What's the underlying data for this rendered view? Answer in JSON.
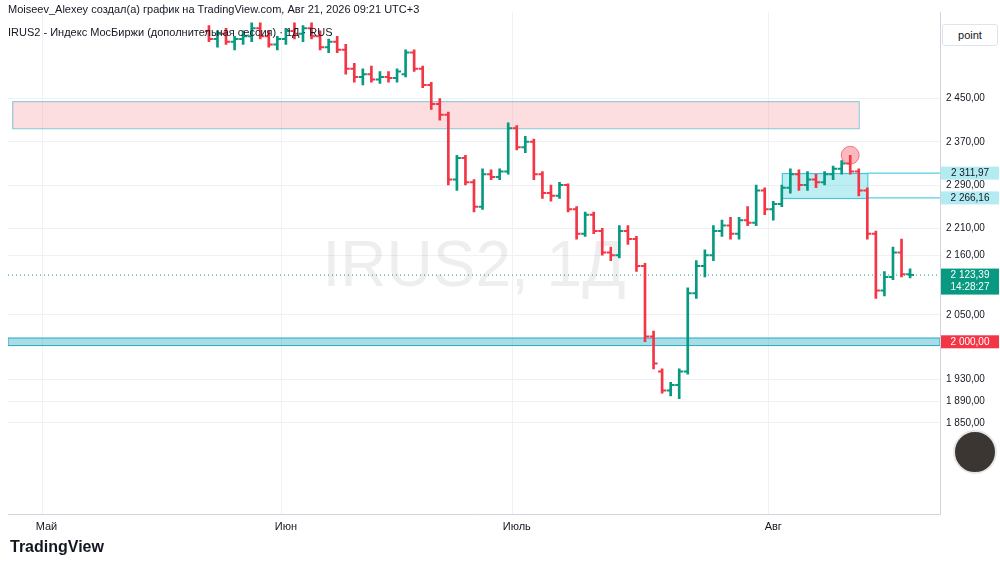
{
  "chart_data": {
    "type": "ohlc",
    "title": "Moiseev_Alexey создал(а) график на TradingView.com, Авг 21, 2026 09:21 UTC+3",
    "subtitle": "IRUS2 - Индекс МосБиржи (дополнительная сессия) · 1Д · RUS",
    "watermark": "IRUS2, 1Д",
    "button": "point",
    "logo": "TradingView",
    "categories": [
      null,
      null,
      null,
      null,
      "Май",
      null,
      null,
      null,
      null,
      null,
      null,
      null,
      null,
      null,
      null,
      null,
      null,
      null,
      null,
      null,
      null,
      null,
      null,
      null,
      null,
      null,
      null,
      null,
      null,
      null,
      null,
      null,
      "Июн",
      null,
      null,
      null,
      null,
      null,
      null,
      null,
      null,
      null,
      null,
      null,
      null,
      null,
      null,
      null,
      null,
      null,
      null,
      null,
      null,
      null,
      null,
      null,
      null,
      null,
      null,
      "Июль",
      null,
      null,
      null,
      null,
      null,
      null,
      null,
      null,
      null,
      null,
      null,
      null,
      null,
      null,
      null,
      null,
      null,
      null,
      null,
      null,
      null,
      null,
      null,
      null,
      null,
      null,
      null,
      null,
      null,
      "Авг",
      null,
      null,
      null,
      null,
      null,
      null,
      null,
      null,
      null,
      null,
      null,
      null,
      null,
      null,
      null,
      null,
      null,
      null,
      null
    ],
    "ohlc": [
      null,
      null,
      null,
      null,
      null,
      null,
      null,
      null,
      null,
      null,
      null,
      null,
      null,
      null,
      null,
      null,
      null,
      null,
      null,
      null,
      null,
      null,
      null,
      [
        2575,
        2585,
        2555,
        2560
      ],
      [
        2560,
        2575,
        2545,
        2570
      ],
      [
        2570,
        2580,
        2550,
        2555
      ],
      [
        2555,
        2565,
        2540,
        2560
      ],
      [
        2560,
        2575,
        2550,
        2565
      ],
      [
        2565,
        2590,
        2555,
        2580
      ],
      [
        2580,
        2590,
        2560,
        2565
      ],
      [
        2565,
        2575,
        2545,
        2550
      ],
      [
        2550,
        2565,
        2540,
        2560
      ],
      [
        2560,
        2580,
        2550,
        2575
      ],
      [
        2575,
        2590,
        2560,
        2570
      ],
      [
        2570,
        2585,
        2555,
        2580
      ],
      [
        2580,
        2590,
        2560,
        2565
      ],
      [
        2565,
        2575,
        2540,
        2545
      ],
      [
        2545,
        2560,
        2535,
        2555
      ],
      [
        2555,
        2565,
        2535,
        2540
      ],
      [
        2540,
        2550,
        2495,
        2505
      ],
      [
        2505,
        2515,
        2480,
        2490
      ],
      [
        2490,
        2505,
        2475,
        2495
      ],
      [
        2495,
        2510,
        2480,
        2485
      ],
      [
        2485,
        2500,
        2478,
        2490
      ],
      [
        2490,
        2500,
        2480,
        2488
      ],
      [
        2488,
        2505,
        2480,
        2500
      ],
      [
        2495,
        2540,
        2490,
        2535
      ],
      [
        2535,
        2540,
        2500,
        2505
      ],
      [
        2505,
        2510,
        2470,
        2475
      ],
      [
        2475,
        2480,
        2430,
        2440
      ],
      [
        2440,
        2450,
        2410,
        2420
      ],
      [
        2420,
        2425,
        2290,
        2300
      ],
      [
        2300,
        2345,
        2280,
        2340
      ],
      [
        2340,
        2345,
        2290,
        2295
      ],
      [
        2295,
        2300,
        2240,
        2250
      ],
      [
        2250,
        2320,
        2245,
        2310
      ],
      [
        2310,
        2318,
        2300,
        2305
      ],
      [
        2305,
        2320,
        2300,
        2315
      ],
      [
        2315,
        2405,
        2310,
        2395
      ],
      [
        2395,
        2400,
        2355,
        2360
      ],
      [
        2360,
        2380,
        2350,
        2370
      ],
      [
        2370,
        2375,
        2300,
        2310
      ],
      [
        2310,
        2315,
        2265,
        2275
      ],
      [
        2275,
        2290,
        2260,
        2270
      ],
      [
        2270,
        2295,
        2265,
        2290
      ],
      [
        2290,
        2292,
        2240,
        2245
      ],
      [
        2245,
        2250,
        2190,
        2200
      ],
      [
        2200,
        2240,
        2195,
        2235
      ],
      [
        2235,
        2240,
        2200,
        2205
      ],
      [
        2205,
        2210,
        2160,
        2165
      ],
      [
        2165,
        2175,
        2150,
        2160
      ],
      [
        2160,
        2215,
        2155,
        2205
      ],
      [
        2205,
        2215,
        2180,
        2190
      ],
      [
        2190,
        2195,
        2130,
        2140
      ],
      [
        2140,
        2145,
        2000,
        2010
      ],
      [
        2010,
        2020,
        1950,
        1960
      ],
      [
        1945,
        1950,
        1905,
        1910
      ],
      [
        1910,
        1925,
        1900,
        1920
      ],
      [
        1920,
        1950,
        1895,
        1945
      ],
      [
        1945,
        2100,
        1940,
        2090
      ],
      [
        2090,
        2150,
        2080,
        2140
      ],
      [
        2140,
        2170,
        2120,
        2160
      ],
      [
        2160,
        2215,
        2150,
        2205
      ],
      [
        2205,
        2225,
        2195,
        2215
      ],
      [
        2215,
        2230,
        2190,
        2200
      ],
      [
        2200,
        2230,
        2190,
        2225
      ],
      [
        2225,
        2250,
        2215,
        2220
      ],
      [
        2220,
        2290,
        2215,
        2280
      ],
      [
        2280,
        2285,
        2235,
        2245
      ],
      [
        2245,
        2260,
        2225,
        2255
      ],
      [
        2255,
        2290,
        2250,
        2285
      ],
      [
        2285,
        2320,
        2275,
        2310
      ],
      [
        2310,
        2318,
        2280,
        2290
      ],
      [
        2290,
        2315,
        2280,
        2300
      ],
      [
        2300,
        2310,
        2285,
        2295
      ],
      [
        2295,
        2315,
        2290,
        2310
      ],
      [
        2310,
        2325,
        2300,
        2320
      ],
      [
        2320,
        2335,
        2310,
        2330
      ],
      [
        2330,
        2345,
        2310,
        2315
      ],
      [
        2315,
        2320,
        2270,
        2280
      ],
      [
        2280,
        2285,
        2190,
        2200
      ],
      [
        2200,
        2205,
        2080,
        2095
      ],
      [
        2095,
        2130,
        2085,
        2120
      ],
      [
        2120,
        2175,
        2115,
        2165
      ],
      [
        2165,
        2190,
        2120,
        2125
      ],
      [
        2125,
        2135,
        2118,
        2123.39
      ],
      null,
      null,
      null
    ],
    "colors": [
      null,
      null,
      null,
      null,
      null,
      null,
      null,
      null,
      null,
      null,
      null,
      null,
      null,
      null,
      null,
      null,
      null,
      null,
      null,
      null,
      null,
      null,
      null,
      "#f23645",
      "#089981",
      "#f23645",
      "#089981",
      "#089981",
      "#089981",
      "#f23645",
      "#f23645",
      "#089981",
      "#089981",
      "#f23645",
      "#089981",
      "#f23645",
      "#f23645",
      "#089981",
      "#f23645",
      "#f23645",
      "#f23645",
      "#089981",
      "#f23645",
      "#089981",
      "#f23645",
      "#089981",
      "#089981",
      "#f23645",
      "#f23645",
      "#f23645",
      "#f23645",
      "#f23645",
      "#089981",
      "#f23645",
      "#f23645",
      "#089981",
      "#f23645",
      "#089981",
      "#089981",
      "#f23645",
      "#089981",
      "#f23645",
      "#f23645",
      "#f23645",
      "#089981",
      "#f23645",
      "#f23645",
      "#089981",
      "#f23645",
      "#f23645",
      "#f23645",
      "#089981",
      "#f23645",
      "#f23645",
      "#f23645",
      "#f23645",
      "#f23645",
      "#089981",
      "#089981",
      "#089981",
      "#089981",
      "#089981",
      "#089981",
      "#089981",
      "#f23645",
      "#089981",
      "#f23645",
      "#089981",
      "#f23645",
      "#089981",
      "#089981",
      "#089981",
      "#f23645",
      "#089981",
      "#f23645",
      "#089981",
      "#089981",
      "#089981",
      "#f23645",
      "#f23645",
      "#f23645",
      "#f23645",
      "#089981",
      "#089981",
      "#f23645",
      "#089981",
      null,
      null,
      null
    ],
    "ylim": [
      1680,
      2610
    ],
    "yticks": [
      {
        "value": 1850,
        "label": "1 850,00"
      },
      {
        "value": 1890,
        "label": "1 890,00"
      },
      {
        "value": 1930,
        "label": "1 930,00"
      },
      {
        "value": 2050,
        "label": "2 050,00"
      },
      {
        "value": 2160,
        "label": "2 160,00"
      },
      {
        "value": 2210,
        "label": "2 210,00"
      },
      {
        "value": 2290,
        "label": "2 290,00"
      },
      {
        "value": 2370,
        "label": "2 370,00"
      },
      {
        "value": 2450,
        "label": "2 450,00"
      }
    ],
    "grid": true,
    "annotations": [
      {
        "type": "zone",
        "x": [
          0,
          99
        ],
        "y": [
          2395,
          2445
        ],
        "color": "#f7a1a8"
      },
      {
        "type": "band",
        "y": [
          1993,
          2007
        ],
        "value": 2000,
        "label": "2 000,00",
        "color": "#26a9c4"
      },
      {
        "type": "box",
        "x": [
          90,
          100
        ],
        "y": [
          2266.16,
          2311.97
        ],
        "color": "#26c6da"
      },
      {
        "type": "level",
        "x": 100,
        "y": 2311.97,
        "label": "2 311,97",
        "color": "#26c6da"
      },
      {
        "type": "level",
        "x": 100,
        "y": 2266.16,
        "label": "2 266,16",
        "color": "#26c6da"
      },
      {
        "type": "price",
        "y": 2123.39,
        "label": "2 123,39",
        "time": "14:28:27",
        "color": "#089981"
      },
      {
        "type": "circle",
        "x": 98,
        "y": 2345,
        "color": "#f23645"
      }
    ]
  }
}
